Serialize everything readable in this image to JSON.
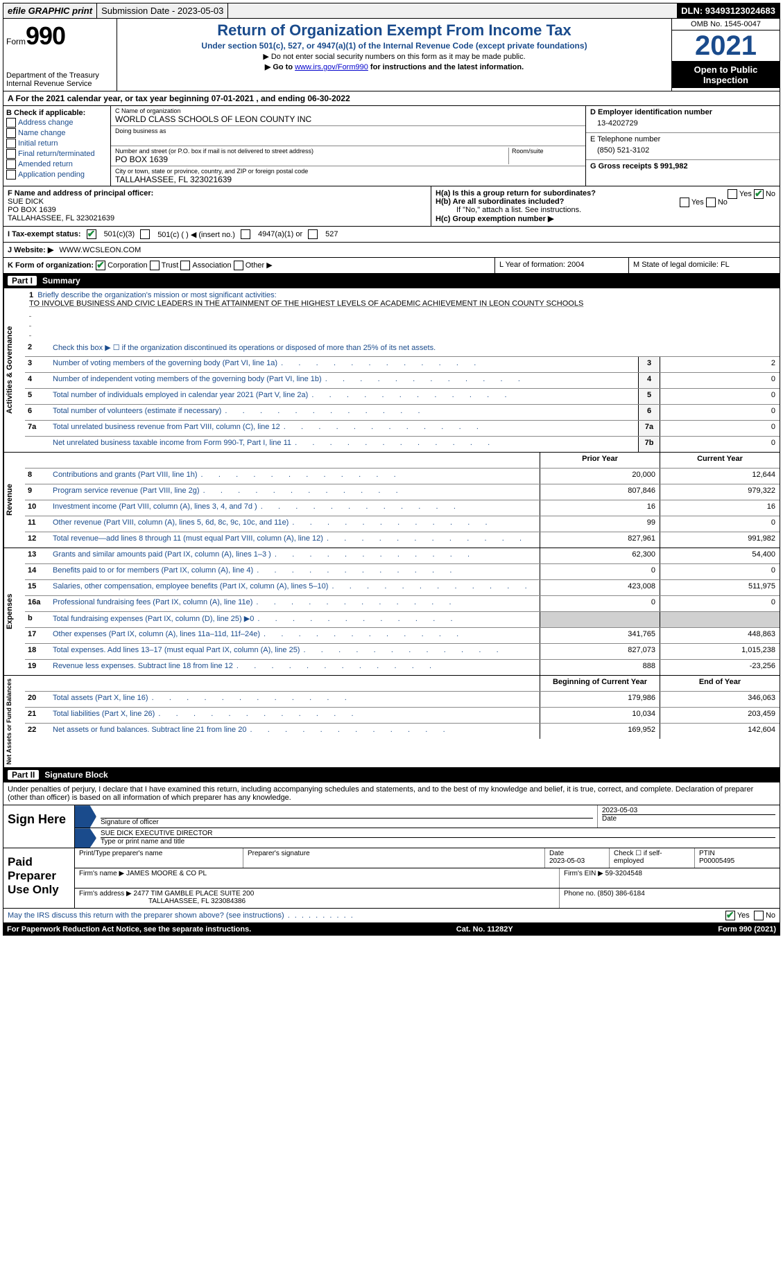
{
  "colors": {
    "primary": "#1a4b8c",
    "check": "#1a8c3a",
    "link": "#0000cc"
  },
  "topbar": {
    "efile_label": "efile GRAPHIC print",
    "submission_label": "Submission Date - 2023-05-03",
    "dln_label": "DLN: 93493123024683"
  },
  "header": {
    "form_prefix": "Form",
    "form_number": "990",
    "dept": "Department of the Treasury",
    "irs": "Internal Revenue Service",
    "title": "Return of Organization Exempt From Income Tax",
    "subtitle": "Under section 501(c), 527, or 4947(a)(1) of the Internal Revenue Code (except private foundations)",
    "note1": "▶ Do not enter social security numbers on this form as it may be made public.",
    "note2_pre": "▶ Go to ",
    "note2_link": "www.irs.gov/Form990",
    "note2_post": " for instructions and the latest information.",
    "omb": "OMB No. 1545-0047",
    "year": "2021",
    "inspect1": "Open to Public",
    "inspect2": "Inspection"
  },
  "row_a": "A For the 2021 calendar year, or tax year beginning 07-01-2021    , and ending 06-30-2022",
  "col_b": {
    "title": "B Check if applicable:",
    "opts": [
      "Address change",
      "Name change",
      "Initial return",
      "Final return/terminated",
      "Amended return",
      "Application pending"
    ]
  },
  "col_c": {
    "name_label": "C Name of organization",
    "name": "WORLD CLASS SCHOOLS OF LEON COUNTY INC",
    "dba_label": "Doing business as",
    "addr_label": "Number and street (or P.O. box if mail is not delivered to street address)",
    "room_label": "Room/suite",
    "addr": "PO BOX 1639",
    "city_label": "City or town, state or province, country, and ZIP or foreign postal code",
    "city": "TALLAHASSEE, FL  323021639"
  },
  "col_de": {
    "d_label": "D Employer identification number",
    "d_val": "13-4202729",
    "e_label": "E Telephone number",
    "e_val": "(850) 521-3102",
    "g_label": "G Gross receipts $ 991,982"
  },
  "row_f": {
    "label": "F  Name and address of principal officer:",
    "name": "SUE DICK",
    "addr1": "PO BOX 1639",
    "addr2": "TALLAHASSEE, FL  323021639"
  },
  "row_h": {
    "a_label": "H(a)  Is this a group return for subordinates?",
    "yes": "Yes",
    "no": "No",
    "b_label": "H(b) Are all subordinates included?",
    "b_note": "If \"No,\" attach a list. See instructions.",
    "c_label": "H(c)  Group exemption number ▶"
  },
  "row_i": {
    "label": "I   Tax-exempt status:",
    "o1": "501(c)(3)",
    "o2": "501(c) (  ) ◀ (insert no.)",
    "o3": "4947(a)(1) or",
    "o4": "527"
  },
  "row_j": {
    "label": "J   Website: ▶",
    "val": "  WWW.WCSLEON.COM"
  },
  "row_k": {
    "label": "K Form of organization:",
    "o1": "Corporation",
    "o2": "Trust",
    "o3": "Association",
    "o4": "Other ▶",
    "l_label": "L Year of formation: 2004",
    "m_label": "M State of legal domicile: FL"
  },
  "part1": {
    "num": "Part I",
    "title": "Summary"
  },
  "activities": {
    "vtab": "Activities & Governance",
    "l1_label": "Briefly describe the organization's mission or most significant activities:",
    "l1_text": "TO INVOLVE BUSINESS AND CIVIC LEADERS IN THE ATTAINMENT OF THE HIGHEST LEVELS OF ACADEMIC ACHIEVEMENT IN LEON COUNTY SCHOOLS",
    "l2": "Check this box ▶ ☐  if the organization discontinued its operations or disposed of more than 25% of its net assets.",
    "lines": [
      {
        "n": "3",
        "t": "Number of voting members of the governing body (Part VI, line 1a)",
        "box": "3",
        "v": "2"
      },
      {
        "n": "4",
        "t": "Number of independent voting members of the governing body (Part VI, line 1b)",
        "box": "4",
        "v": "0"
      },
      {
        "n": "5",
        "t": "Total number of individuals employed in calendar year 2021 (Part V, line 2a)",
        "box": "5",
        "v": "0"
      },
      {
        "n": "6",
        "t": "Total number of volunteers (estimate if necessary)",
        "box": "6",
        "v": "0"
      },
      {
        "n": "7a",
        "t": "Total unrelated business revenue from Part VIII, column (C), line 12",
        "box": "7a",
        "v": "0"
      },
      {
        "n": "",
        "t": "Net unrelated business taxable income from Form 990-T, Part I, line 11",
        "box": "7b",
        "v": "0"
      }
    ]
  },
  "revenue": {
    "vtab": "Revenue",
    "h1": "Prior Year",
    "h2": "Current Year",
    "lines": [
      {
        "n": "8",
        "t": "Contributions and grants (Part VIII, line 1h)",
        "v1": "20,000",
        "v2": "12,644"
      },
      {
        "n": "9",
        "t": "Program service revenue (Part VIII, line 2g)",
        "v1": "807,846",
        "v2": "979,322"
      },
      {
        "n": "10",
        "t": "Investment income (Part VIII, column (A), lines 3, 4, and 7d )",
        "v1": "16",
        "v2": "16"
      },
      {
        "n": "11",
        "t": "Other revenue (Part VIII, column (A), lines 5, 6d, 8c, 9c, 10c, and 11e)",
        "v1": "99",
        "v2": "0"
      },
      {
        "n": "12",
        "t": "Total revenue—add lines 8 through 11 (must equal Part VIII, column (A), line 12)",
        "v1": "827,961",
        "v2": "991,982"
      }
    ]
  },
  "expenses": {
    "vtab": "Expenses",
    "lines": [
      {
        "n": "13",
        "t": "Grants and similar amounts paid (Part IX, column (A), lines 1–3 )",
        "v1": "62,300",
        "v2": "54,400"
      },
      {
        "n": "14",
        "t": "Benefits paid to or for members (Part IX, column (A), line 4)",
        "v1": "0",
        "v2": "0"
      },
      {
        "n": "15",
        "t": "Salaries, other compensation, employee benefits (Part IX, column (A), lines 5–10)",
        "v1": "423,008",
        "v2": "511,975"
      },
      {
        "n": "16a",
        "t": "Professional fundraising fees (Part IX, column (A), line 11e)",
        "v1": "0",
        "v2": "0"
      },
      {
        "n": "b",
        "t": "Total fundraising expenses (Part IX, column (D), line 25) ▶0",
        "v1": "",
        "v2": "",
        "shade": true
      },
      {
        "n": "17",
        "t": "Other expenses (Part IX, column (A), lines 11a–11d, 11f–24e)",
        "v1": "341,765",
        "v2": "448,863"
      },
      {
        "n": "18",
        "t": "Total expenses. Add lines 13–17 (must equal Part IX, column (A), line 25)",
        "v1": "827,073",
        "v2": "1,015,238"
      },
      {
        "n": "19",
        "t": "Revenue less expenses. Subtract line 18 from line 12",
        "v1": "888",
        "v2": "-23,256"
      }
    ]
  },
  "netassets": {
    "vtab": "Net Assets or Fund Balances",
    "h1": "Beginning of Current Year",
    "h2": "End of Year",
    "lines": [
      {
        "n": "20",
        "t": "Total assets (Part X, line 16)",
        "v1": "179,986",
        "v2": "346,063"
      },
      {
        "n": "21",
        "t": "Total liabilities (Part X, line 26)",
        "v1": "10,034",
        "v2": "203,459"
      },
      {
        "n": "22",
        "t": "Net assets or fund balances. Subtract line 21 from line 20",
        "v1": "169,952",
        "v2": "142,604"
      }
    ]
  },
  "part2": {
    "num": "Part II",
    "title": "Signature Block"
  },
  "sig": {
    "declare": "Under penalties of perjury, I declare that I have examined this return, including accompanying schedules and statements, and to the best of my knowledge and belief, it is true, correct, and complete. Declaration of preparer (other than officer) is based on all information of which preparer has any knowledge.",
    "sign_here": "Sign Here",
    "sig_officer_label": "Signature of officer",
    "date_label": "Date",
    "date_val": "2023-05-03",
    "type_name": "SUE DICK  EXECUTIVE DIRECTOR",
    "type_label": "Type or print name and title",
    "paid": "Paid Preparer Use Only",
    "prep_name_label": "Print/Type preparer's name",
    "prep_sig_label": "Preparer's signature",
    "prep_date_label": "Date",
    "prep_date": "2023-05-03",
    "self_emp": "Check ☐ if self-employed",
    "ptin_label": "PTIN",
    "ptin": "P00005495",
    "firm_name_label": "Firm's name    ▶",
    "firm_name": "JAMES MOORE & CO PL",
    "firm_ein_label": "Firm's EIN ▶ 59-3204548",
    "firm_addr_label": "Firm's address ▶",
    "firm_addr1": "2477 TIM GAMBLE PLACE SUITE 200",
    "firm_addr2": "TALLAHASSEE, FL  323084386",
    "firm_phone": "Phone no. (850) 386-6184"
  },
  "footer": {
    "discuss": "May the IRS discuss this return with the preparer shown above? (see instructions)",
    "yes": "Yes",
    "no": "No",
    "paperwork": "For Paperwork Reduction Act Notice, see the separate instructions.",
    "cat": "Cat. No. 11282Y",
    "form": "Form 990 (2021)"
  }
}
